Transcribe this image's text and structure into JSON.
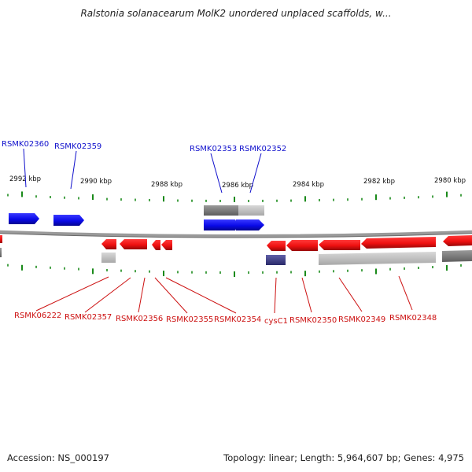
{
  "title": "Ralstonia solanacearum MolK2 unordered unplaced scaffolds, w...",
  "footer": {
    "accession": "Accession: NS_000197",
    "summary": "Topology: linear; Length: 5,964,607 bp; Genes: 4,975"
  },
  "colors": {
    "forward_gene": "#1010ee",
    "reverse_gene": "#ee1010",
    "gray_feature": "#8a8a8a",
    "light_gray_feature": "#bdbdbd",
    "dark_blue_feature": "#44448a",
    "tick": "#1a8a1a",
    "backbone": "#808080"
  },
  "scale_labels": [
    "2992 kbp",
    "2990 kbp",
    "2988 kbp",
    "2986 kbp",
    "2984 kbp",
    "2982 kbp",
    "2980 kbp"
  ],
  "top_labels": [
    "RSMK02360",
    "RSMK02359",
    "RSMK02353",
    "RSMK02352"
  ],
  "bottom_labels": [
    "RSMK06222",
    "RSMK02357",
    "RSMK02356",
    "RSMK02355",
    "RSMK02354",
    "cysC1",
    "RSMK02350",
    "RSMK02349",
    "RSMK02348"
  ]
}
